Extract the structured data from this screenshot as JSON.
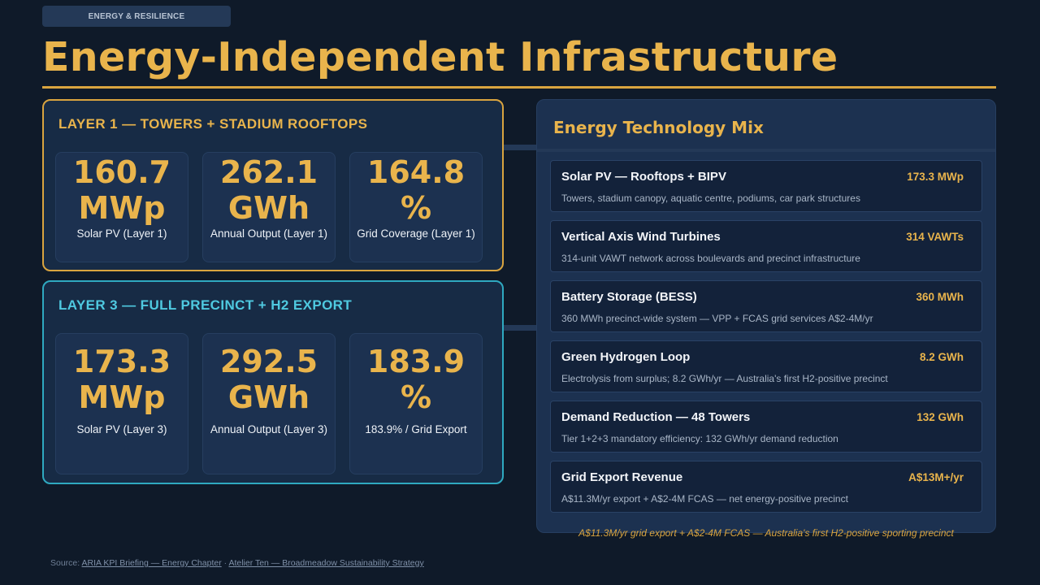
{
  "tag": "ENERGY & RESILIENCE",
  "title": "Energy-Independent Infrastructure",
  "layer1": {
    "heading": "LAYER 1 — TOWERS + STADIUM ROOFTOPS",
    "kpis": [
      {
        "value": "160.7 MWp",
        "label": "Solar PV (Layer 1)"
      },
      {
        "value": "262.1 GWh",
        "label": "Annual Output (Layer 1)"
      },
      {
        "value": "164.8 %",
        "label": "Grid Coverage (Layer 1)"
      }
    ]
  },
  "layer3": {
    "heading": "LAYER 3 — FULL PRECINCT + H2 EXPORT",
    "kpis": [
      {
        "value": "173.3 MWp",
        "label": "Solar PV (Layer 3)"
      },
      {
        "value": "292.5 GWh",
        "label": "Annual Output (Layer 3)"
      },
      {
        "value": "183.9 %",
        "label": "183.9% / Grid Export"
      }
    ]
  },
  "mix": {
    "title": "Energy Technology Mix",
    "items": [
      {
        "name": "Solar PV — Rooftops + BIPV",
        "value": "173.3 MWp",
        "desc": "Towers, stadium canopy, aquatic centre, podiums, car park structures"
      },
      {
        "name": "Vertical Axis Wind Turbines",
        "value": "314 VAWTs",
        "desc": "314-unit VAWT network across boulevards and precinct infrastructure"
      },
      {
        "name": "Battery Storage (BESS)",
        "value": "360 MWh",
        "desc": "360 MWh precinct-wide system — VPP + FCAS grid services A$2-4M/yr"
      },
      {
        "name": "Green Hydrogen Loop",
        "value": "8.2 GWh",
        "desc": "Electrolysis from surplus; 8.2 GWh/yr — Australia's first H2-positive precinct"
      },
      {
        "name": "Demand Reduction — 48 Towers",
        "value": "132 GWh",
        "desc": "Tier 1+2+3 mandatory efficiency: 132 GWh/yr demand reduction"
      },
      {
        "name": "Grid Export Revenue",
        "value": "A$13M+/yr",
        "desc": "A$11.3M/yr export + A$2-4M FCAS — net energy-positive precinct"
      }
    ],
    "footnote": "A$11.3M/yr grid export + A$2-4M FCAS — Australia's first H2-positive sporting precinct"
  },
  "source": {
    "prefix": "Source:",
    "link1": "ARIA KPI Briefing — Energy Chapter",
    "separator": "·",
    "link2": "Atelier Ten — Broadmeadow Sustainability Strategy"
  },
  "colors": {
    "background": "#0f1a29",
    "accent_gold": "#e9b44c",
    "accent_teal": "#2fa9c0",
    "panel": "#1c3150"
  }
}
